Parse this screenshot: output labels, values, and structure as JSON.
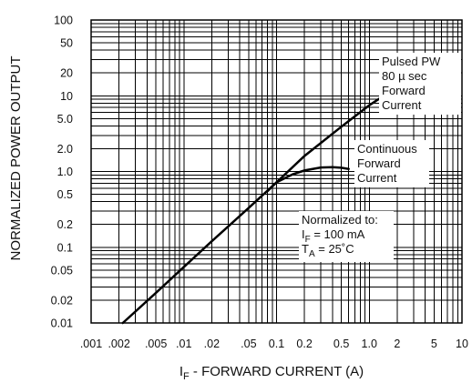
{
  "chart_data": {
    "type": "line",
    "title": "",
    "xlabel": {
      "prefix": "I",
      "sub": "F",
      "rest": " - FORWARD CURRENT (A)"
    },
    "ylabel": "NORMALIZED POWER OUTPUT",
    "xscale": "log",
    "yscale": "log",
    "xlim": [
      0.001,
      10
    ],
    "ylim": [
      0.01,
      100
    ],
    "grid": true,
    "x_ticks": [
      {
        "v": 0.001,
        "label": ".001"
      },
      {
        "v": 0.002,
        "label": ".002"
      },
      {
        "v": 0.005,
        "label": ".005"
      },
      {
        "v": 0.01,
        "label": ".01"
      },
      {
        "v": 0.02,
        "label": ".02"
      },
      {
        "v": 0.05,
        "label": ".05"
      },
      {
        "v": 0.1,
        "label": "0.1"
      },
      {
        "v": 0.2,
        "label": "0.2"
      },
      {
        "v": 0.5,
        "label": "0.5"
      },
      {
        "v": 1,
        "label": "1.0"
      },
      {
        "v": 2,
        "label": "2"
      },
      {
        "v": 5,
        "label": "5"
      },
      {
        "v": 10,
        "label": "10"
      }
    ],
    "y_ticks": [
      {
        "v": 100,
        "label": "100"
      },
      {
        "v": 50,
        "label": "50"
      },
      {
        "v": 20,
        "label": "20"
      },
      {
        "v": 10,
        "label": "10"
      },
      {
        "v": 5,
        "label": "5.0"
      },
      {
        "v": 2,
        "label": "2.0"
      },
      {
        "v": 1,
        "label": "1.0"
      },
      {
        "v": 0.5,
        "label": "0.5"
      },
      {
        "v": 0.2,
        "label": "0.2"
      },
      {
        "v": 0.1,
        "label": "0.1"
      },
      {
        "v": 0.05,
        "label": "0.05"
      },
      {
        "v": 0.02,
        "label": "0.02"
      },
      {
        "v": 0.01,
        "label": "0.01"
      }
    ],
    "series": [
      {
        "x": [
          0.0022,
          0.005,
          0.01,
          0.02,
          0.05,
          0.1,
          0.2,
          0.5,
          1.0,
          1.8
        ],
        "y": [
          0.01,
          0.025,
          0.055,
          0.12,
          0.33,
          0.72,
          1.6,
          3.9,
          7.5,
          12
        ]
      },
      {
        "x": [
          0.08,
          0.1,
          0.15,
          0.2,
          0.3,
          0.4,
          0.5,
          0.6
        ],
        "y": [
          0.55,
          0.72,
          0.92,
          1.03,
          1.13,
          1.14,
          1.12,
          1.08
        ]
      }
    ],
    "annotations": [
      {
        "lines": [
          "Pulsed PW",
          "80 µ sec",
          "Forward",
          "Current"
        ]
      },
      {
        "lines": [
          "Continuous",
          "Forward",
          "Current"
        ]
      },
      {
        "lines": [
          {
            "text": "Normalized to:"
          },
          {
            "text": "I",
            "sub": "F",
            "rest": " = 100 mA"
          },
          {
            "text": "T",
            "sub": "A",
            "rest": " = 25˚C"
          }
        ]
      }
    ]
  }
}
